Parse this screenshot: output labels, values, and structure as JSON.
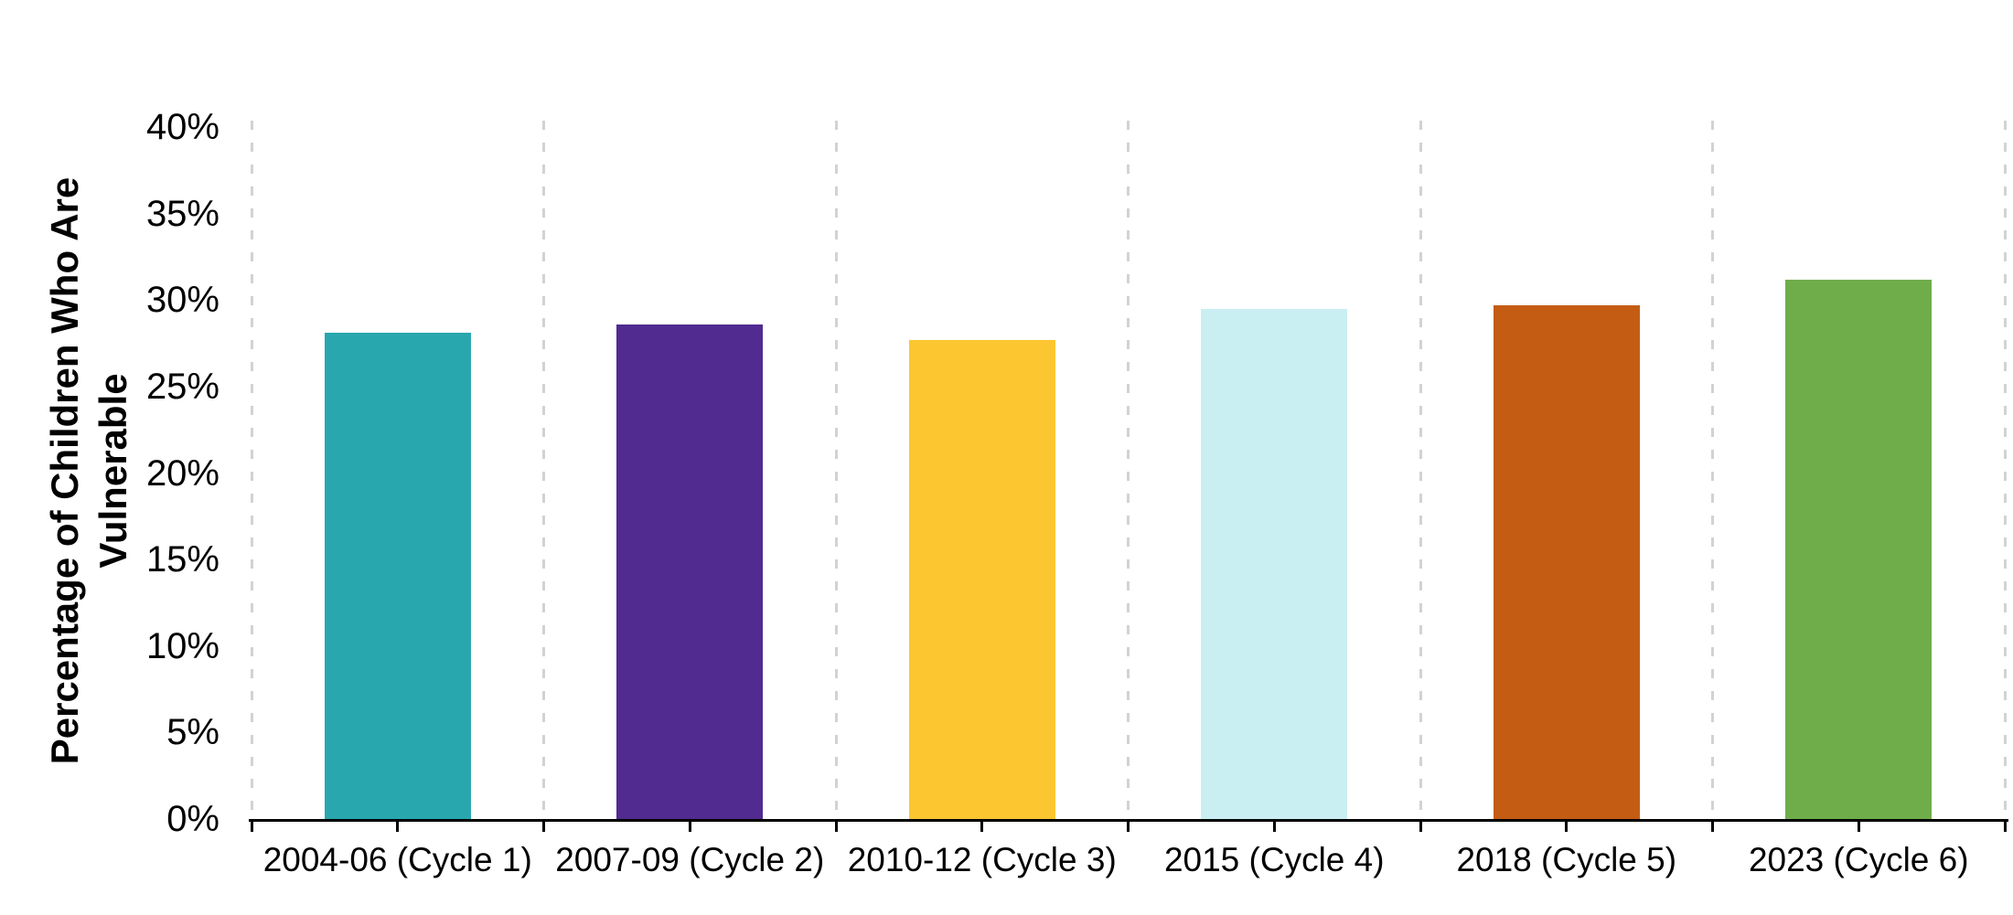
{
  "chart_data": {
    "type": "bar",
    "title": "",
    "ylabel": "Percentage of Children Who Are Vulnerable",
    "ylabel_lines": [
      "Percentage of Children Who Are",
      "Vulnerable"
    ],
    "categories": [
      "2004-06 (Cycle 1)",
      "2007-09 (Cycle 2)",
      "2010-12 (Cycle 3)",
      "2015 (Cycle 4)",
      "2018 (Cycle 5)",
      "2023 (Cycle 6)"
    ],
    "values": [
      28.1,
      28.6,
      27.7,
      29.5,
      29.7,
      31.2
    ],
    "bar_colors": [
      "#29A7AE",
      "#512B90",
      "#FCC631",
      "#C9EFF3",
      "#C45C13",
      "#6FAD4B"
    ],
    "xlabel": "",
    "ylim": [
      0,
      40
    ],
    "ytick_step": 5,
    "yticks": [
      {
        "label": "0%",
        "value": 0
      },
      {
        "label": "5%",
        "value": 5
      },
      {
        "label": "10%",
        "value": 10
      },
      {
        "label": "15%",
        "value": 15
      },
      {
        "label": "20%",
        "value": 20
      },
      {
        "label": "25%",
        "value": 25
      },
      {
        "label": "30%",
        "value": 30
      },
      {
        "label": "35%",
        "value": 35
      },
      {
        "label": "40%",
        "value": 40
      }
    ],
    "grid": "vertical-dashed-category-separators",
    "gridline_color": "#D2D2D2",
    "axis_color": "#000000",
    "legend_position": "none",
    "data_labels": "none"
  }
}
